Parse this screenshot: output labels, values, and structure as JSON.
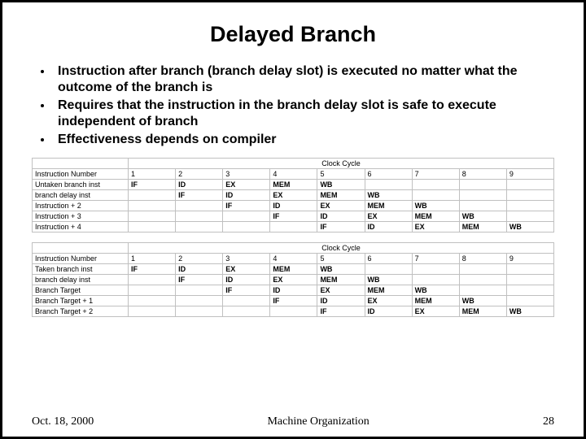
{
  "title": "Delayed Branch",
  "bullets": [
    "Instruction after branch (branch delay slot) is executed no matter what the outcome of the branch is",
    "Requires that the instruction in the branch delay slot is safe to execute independent of branch",
    "Effectiveness depends on compiler"
  ],
  "clock_label": "Clock Cycle",
  "inst_num_label": "Instruction Number",
  "cycles": [
    "1",
    "2",
    "3",
    "4",
    "5",
    "6",
    "7",
    "8",
    "9"
  ],
  "stages": [
    "IF",
    "ID",
    "EX",
    "MEM",
    "WB"
  ],
  "table1_rows": [
    "Untaken branch inst",
    "branch delay inst",
    "Instruction + 2",
    "Instruction + 3",
    "Instruction + 4"
  ],
  "table2_rows": [
    "Taken branch inst",
    "branch delay inst",
    "Branch Target",
    "Branch Target + 1",
    "Branch Target + 2"
  ],
  "footer": {
    "date": "Oct. 18, 2000",
    "course": "Machine Organization",
    "page": "28"
  }
}
